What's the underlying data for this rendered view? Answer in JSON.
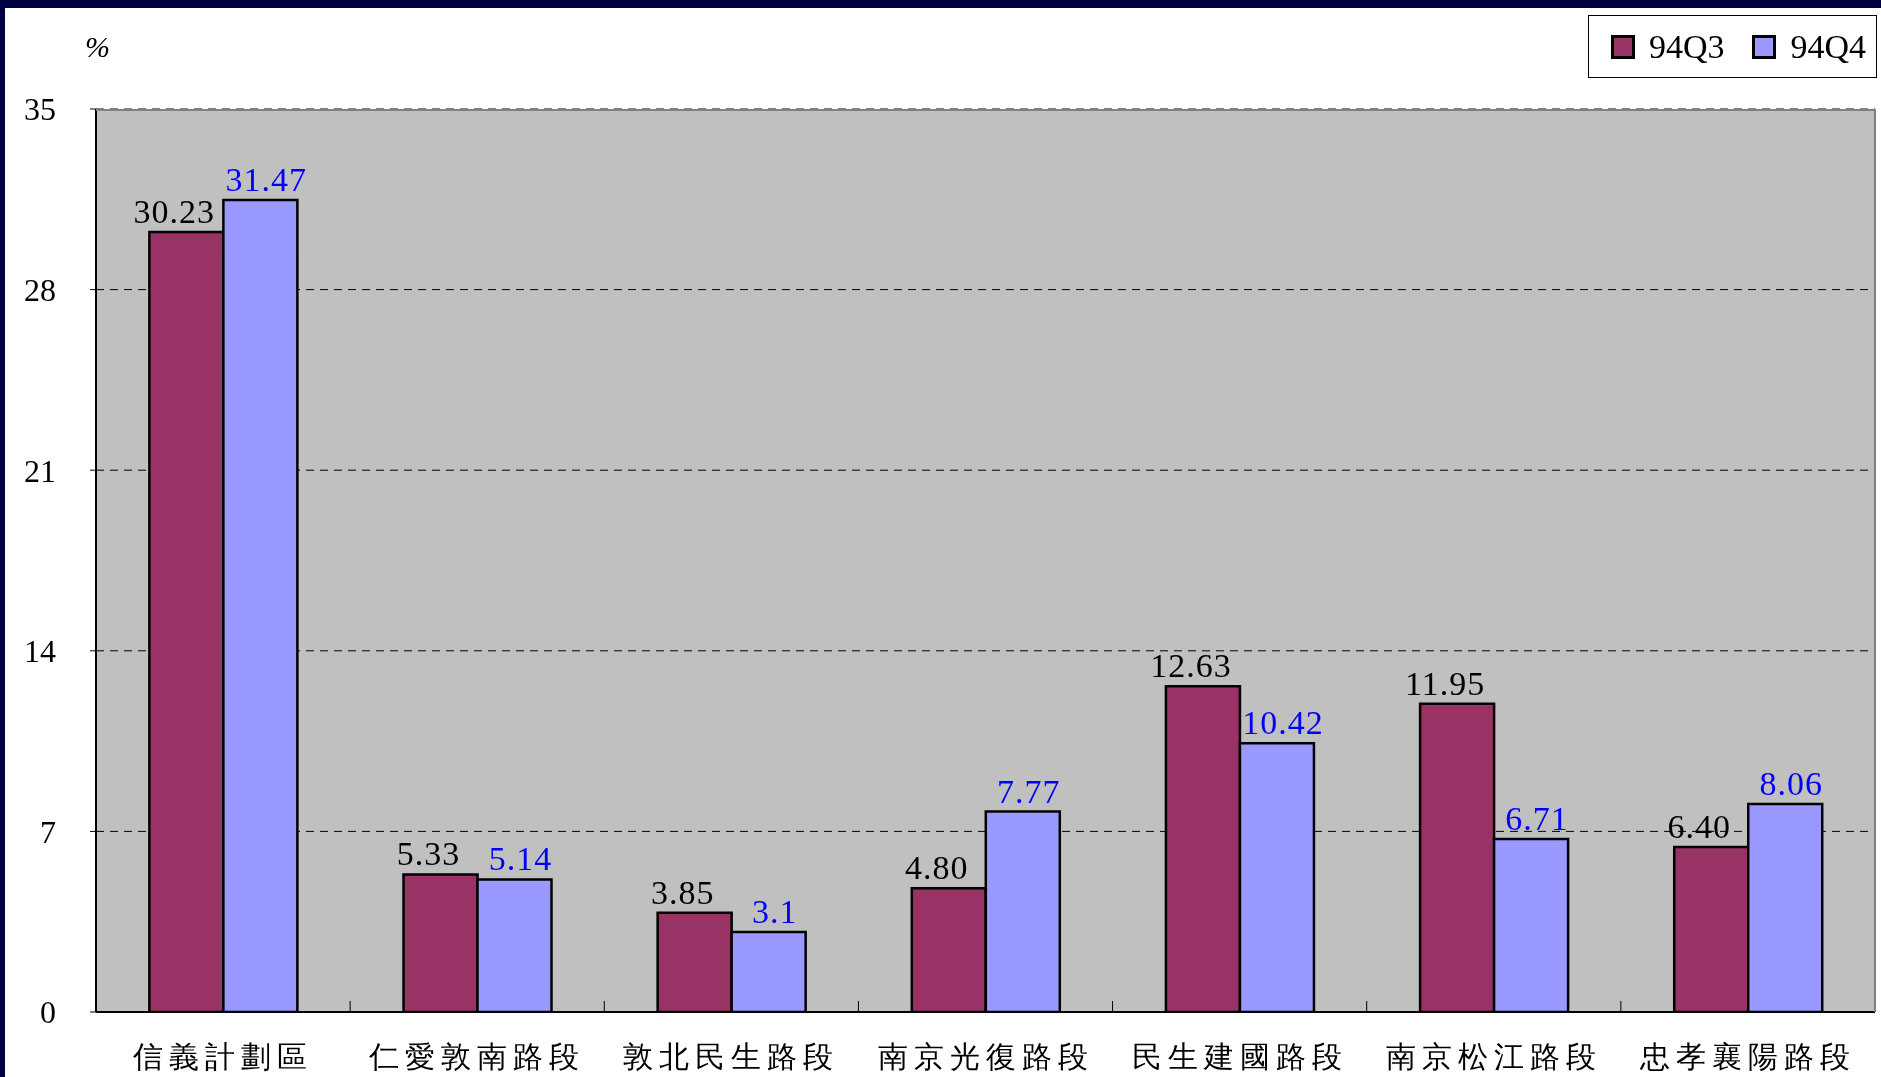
{
  "chart_data": {
    "type": "bar",
    "ylabel": "%",
    "categories": [
      "信義計劃區",
      "仁愛敦南路段",
      "敦北民生路段",
      "南京光復路段",
      "民生建國路段",
      "南京松江路段",
      "忠孝襄陽路段"
    ],
    "series": [
      {
        "name": "94Q3",
        "color": "#993366",
        "values": [
          30.23,
          5.33,
          3.85,
          4.8,
          12.63,
          11.95,
          6.4
        ],
        "value_labels": [
          "30.23",
          "5.33",
          "3.85",
          "4.80",
          "12.63",
          "11.95",
          "6.40"
        ]
      },
      {
        "name": "94Q4",
        "color": "#9999ff",
        "values": [
          31.47,
          5.14,
          3.1,
          7.77,
          10.42,
          6.71,
          8.06
        ],
        "value_labels": [
          "31.47",
          "5.14",
          "3.1",
          "7.77",
          "10.42",
          "6.71",
          "8.06"
        ]
      }
    ],
    "ylim": [
      0,
      35
    ],
    "yticks": [
      0,
      7,
      14,
      21,
      28,
      35
    ],
    "grid": "y",
    "legend": "top right"
  }
}
